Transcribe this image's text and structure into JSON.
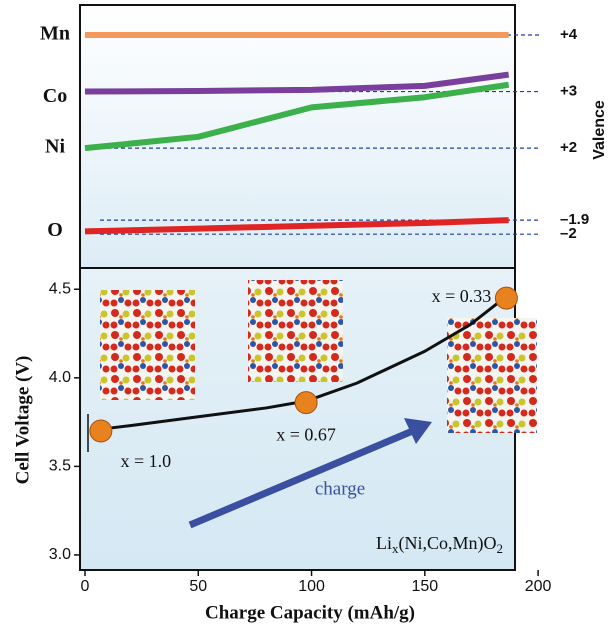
{
  "chart_data": [
    {
      "type": "line",
      "x": [
        0,
        50,
        100,
        150,
        187
      ],
      "xlim": [
        -2.2,
        189.8
      ],
      "ylim": [
        1.26,
        4.53
      ],
      "yticks": [
        {
          "value": 4,
          "label": "+4"
        },
        {
          "value": 3,
          "label": "+3"
        },
        {
          "value": 2,
          "label": "+2"
        }
      ],
      "ylabel": "Valence",
      "series": [
        {
          "name": "Mn",
          "color": "#f39a5a",
          "values": [
            4,
            4,
            4,
            4,
            4
          ]
        },
        {
          "name": "Co",
          "color": "#7a3f9c",
          "values": [
            3.0,
            3.01,
            3.03,
            3.1,
            3.3
          ]
        },
        {
          "name": "Ni",
          "color": "#3cb04a",
          "values": [
            2.0,
            2.2,
            2.72,
            2.9,
            3.12
          ]
        }
      ]
    },
    {
      "type": "line",
      "x": [
        0,
        50,
        100,
        150,
        187
      ],
      "xlim": [
        -2.2,
        189.8
      ],
      "ylim": [
        -2.24,
        -1.686
      ],
      "yticks": [
        {
          "value": -1.9,
          "label": "–1.9"
        },
        {
          "value": -2,
          "label": "–2"
        }
      ],
      "series": [
        {
          "name": "O",
          "color": "#e02424",
          "values": [
            -1.98,
            -1.96,
            -1.94,
            -1.92,
            -1.9
          ]
        }
      ]
    },
    {
      "type": "line",
      "x": [
        7,
        20,
        50,
        80,
        98,
        120,
        150,
        170,
        186
      ],
      "values": [
        3.71,
        3.73,
        3.78,
        3.83,
        3.87,
        3.97,
        4.15,
        4.3,
        4.46
      ],
      "color": "#111111",
      "xlim": [
        -2.2,
        189.8
      ],
      "ylim": [
        2.915,
        4.62
      ],
      "xticks": [
        0,
        50,
        100,
        150,
        200
      ],
      "yticks": [
        {
          "value": 3.0,
          "label": "3.0"
        },
        3.5,
        {
          "value": 4.0,
          "label": "4.0"
        },
        4.5
      ],
      "xlabel": "Charge Capacity (mAh/g)",
      "ylabel": "Cell Voltage (V)",
      "points": {
        "x": [
          7,
          97.6,
          186
        ],
        "values": [
          3.7,
          3.86,
          4.45
        ],
        "color": "#e8821e",
        "labels": [
          "x = 1.0",
          "x = 0.67",
          "x = 0.33"
        ]
      },
      "annotations": {
        "arrow_text": "charge",
        "formula": [
          "Li",
          "x",
          "(Ni,Co,Mn)O",
          "2"
        ]
      }
    }
  ]
}
